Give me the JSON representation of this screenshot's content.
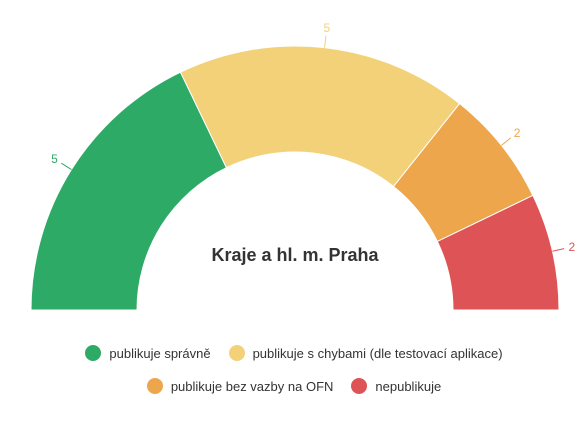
{
  "chart_data": {
    "type": "pie",
    "variant": "semi-donut",
    "center_title": "Kraje a hl. m. Praha",
    "slices": [
      {
        "name": "publikuje správně",
        "value": 5,
        "color": "#2eaa67"
      },
      {
        "name": "publikuje s chybami (dle testovací aplikace)",
        "value": 5,
        "color": "#f2d179"
      },
      {
        "name": "publikuje bez vazby na OFN",
        "value": 2,
        "color": "#eda64b"
      },
      {
        "name": "nepublikuje",
        "value": 2,
        "color": "#de5456"
      }
    ],
    "legend_placement": "bottom"
  }
}
